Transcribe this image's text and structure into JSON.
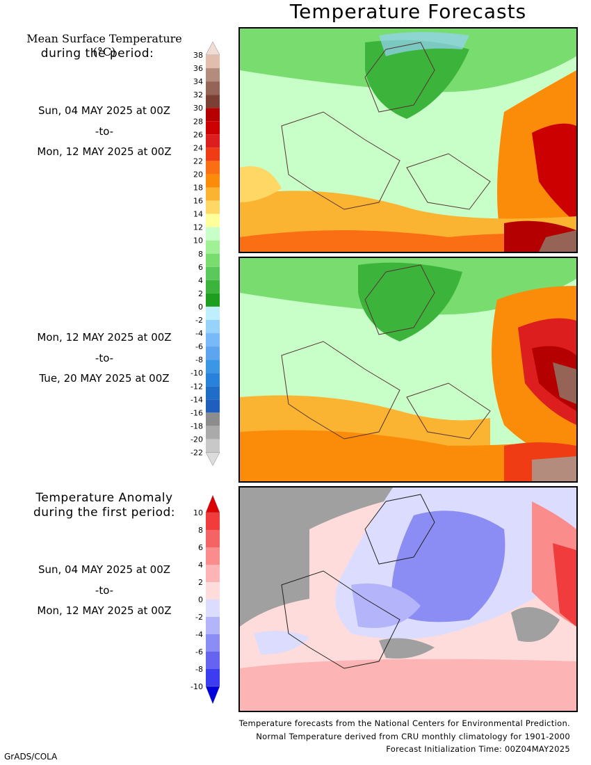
{
  "title": "Temperature Forecasts",
  "mean_legend": {
    "title_line1": "Mean Surface Temperature (°C)",
    "title_line2": "during the period:",
    "ticks": [
      "38",
      "36",
      "34",
      "32",
      "30",
      "28",
      "26",
      "24",
      "22",
      "20",
      "18",
      "16",
      "14",
      "12",
      "10",
      "8",
      "6",
      "4",
      "2",
      "0",
      "-2",
      "-4",
      "-6",
      "-8",
      "-10",
      "-12",
      "-14",
      "-16",
      "-18",
      "-20",
      "-22"
    ],
    "colors": [
      "#f0dcd2",
      "#e1bdae",
      "#b48c7d",
      "#966456",
      "#7a4034",
      "#b40000",
      "#cc0000",
      "#dc1e1e",
      "#f03c14",
      "#fa6e14",
      "#fa8c0a",
      "#fab432",
      "#ffd764",
      "#ffff9b",
      "#c8ffc8",
      "#a0f096",
      "#78dc6e",
      "#5ac85a",
      "#3cb43c",
      "#1e9e1e",
      "#bfefff",
      "#96d2fa",
      "#78b9fa",
      "#5ea5f0",
      "#3c96e6",
      "#2882dc",
      "#1e6ec8",
      "#1e5fbe",
      "#8c8c8c",
      "#aaaaaa",
      "#c8c8c8",
      "#dcdcdc"
    ]
  },
  "period1": {
    "start": "Sun, 04 MAY 2025 at 00Z",
    "sep": "-to-",
    "end": "Mon, 12 MAY 2025 at 00Z"
  },
  "period2": {
    "start": "Mon, 12 MAY 2025 at 00Z",
    "sep": "-to-",
    "end": "Tue, 20 MAY 2025 at 00Z"
  },
  "anomaly_legend": {
    "title_line1": "Temperature Anomaly",
    "title_line2": "during the first period:",
    "ticks": [
      "10",
      "8",
      "6",
      "4",
      "2",
      "0",
      "-2",
      "-4",
      "-6",
      "-8",
      "-10"
    ],
    "colors": [
      "#dc0000",
      "#f03c3c",
      "#f56464",
      "#fa8c8c",
      "#fcb4b4",
      "#ffdcdc",
      "#dcdcff",
      "#b4b4fa",
      "#8c8cf5",
      "#6464f0",
      "#3c3cf0",
      "#0000dc"
    ]
  },
  "period3": {
    "start": "Sun, 04 MAY 2025 at 00Z",
    "sep": "-to-",
    "end": "Mon, 12 MAY 2025 at 00Z"
  },
  "footer": {
    "line1": "Temperature forecasts from the National Centers for Environmental Prediction.",
    "line2": "Normal Temperature derived from CRU monthly climatology for 1901-2000",
    "line3": "Forecast Initialization Time: 00Z04MAY2025"
  },
  "credit": "GrADS/COLA"
}
